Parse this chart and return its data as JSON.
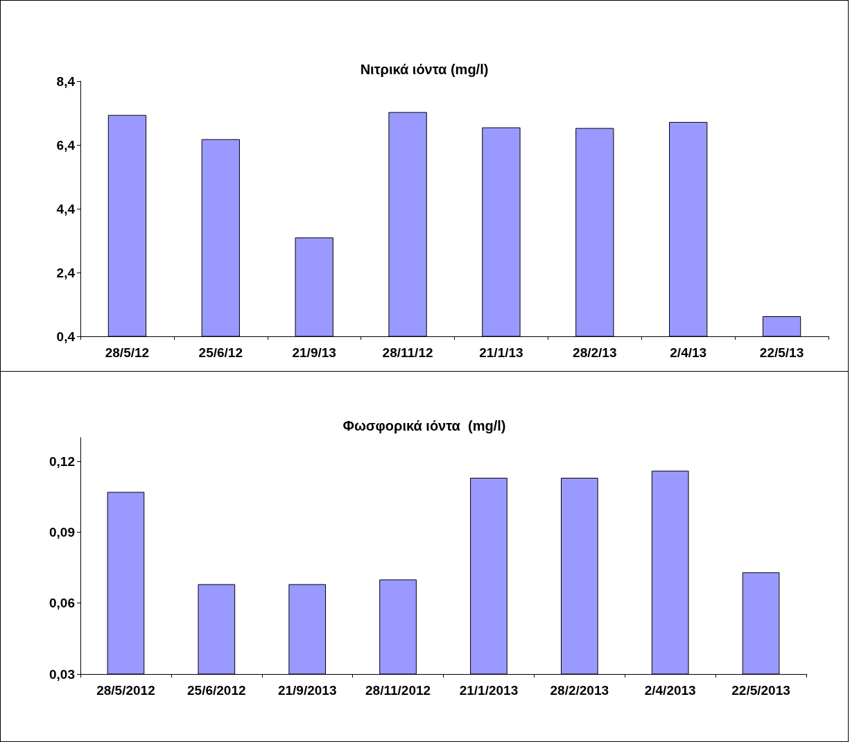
{
  "chart_data": [
    {
      "type": "bar",
      "title": "Νιτρικά ιόντα (mg/l)",
      "categories": [
        "28/5/12",
        "25/6/12",
        "21/9/13",
        "28/11/12",
        "21/1/13",
        "28/2/13",
        "2/4/13",
        "22/5/13"
      ],
      "values": [
        7.34,
        6.58,
        3.5,
        7.43,
        6.95,
        6.93,
        7.12,
        1.03
      ],
      "color": "#9999ff",
      "ylim": [
        0.4,
        8.4
      ],
      "yticks": [
        {
          "value": 0.4,
          "label": "0,4"
        },
        {
          "value": 2.4,
          "label": "2,4"
        },
        {
          "value": 4.4,
          "label": "4,4"
        },
        {
          "value": 6.4,
          "label": "6,4"
        },
        {
          "value": 8.4,
          "label": "8,4"
        }
      ],
      "grid": false
    },
    {
      "type": "bar",
      "title": "Φωσφορικά ιόντα  (mg/l)",
      "categories": [
        "28/5/2012",
        "25/6/2012",
        "21/9/2013",
        "28/11/2012",
        "21/1/2013",
        "28/2/2013",
        "2/4/2013",
        "22/5/2013"
      ],
      "values": [
        0.107,
        0.068,
        0.068,
        0.07,
        0.113,
        0.113,
        0.116,
        0.073
      ],
      "color": "#9999ff",
      "ylim": [
        0.03,
        0.13
      ],
      "yticks": [
        {
          "value": 0.03,
          "label": "0,03"
        },
        {
          "value": 0.06,
          "label": "0,06"
        },
        {
          "value": 0.09,
          "label": "0,09"
        },
        {
          "value": 0.12,
          "label": "0,12"
        }
      ],
      "grid": false
    }
  ]
}
